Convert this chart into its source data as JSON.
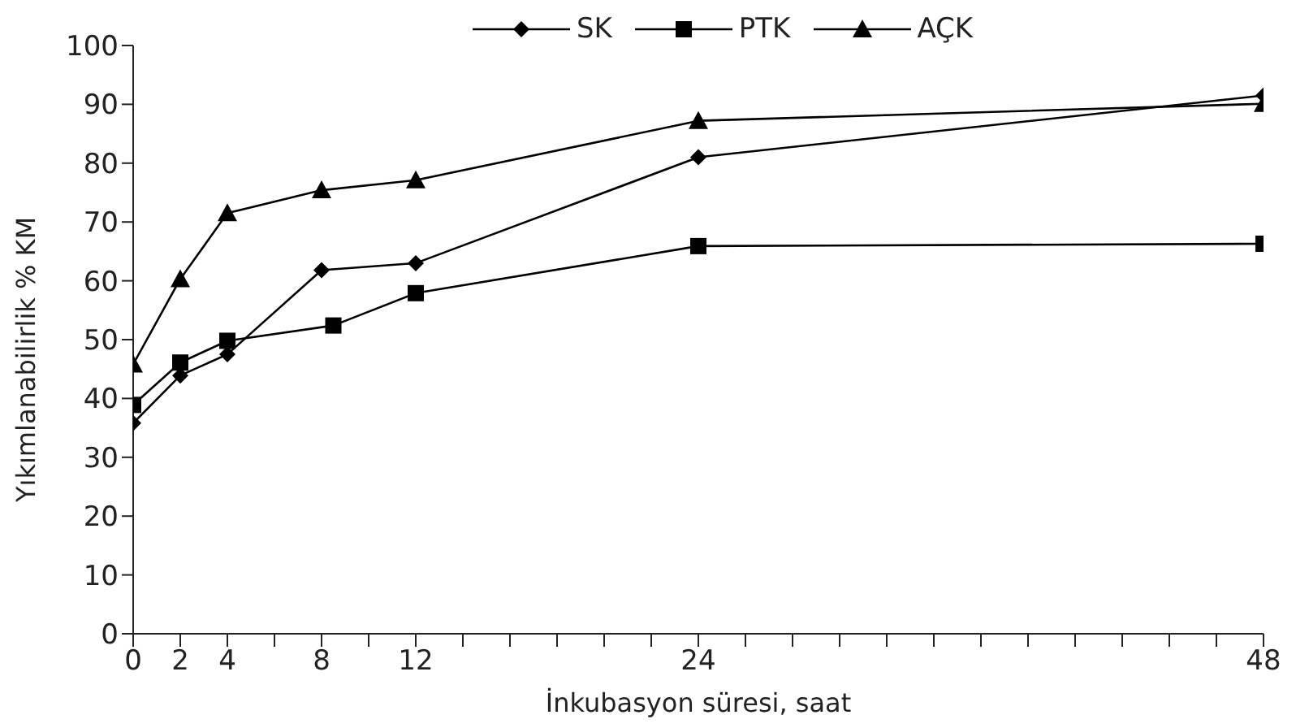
{
  "chart_data": {
    "type": "line",
    "xlabel": "İnkubasyon süresi, saat",
    "ylabel": "Yıkımlanabilirlik % KM",
    "xlim": [
      0,
      48
    ],
    "xticks": [
      0,
      2,
      4,
      {
        "value": 6,
        "label": null
      },
      8,
      {
        "value": 10,
        "label": null
      },
      12,
      {
        "value": 14,
        "label": null
      },
      {
        "value": 16,
        "label": null
      },
      {
        "value": 18,
        "label": null
      },
      {
        "value": 20,
        "label": null
      },
      {
        "value": 22,
        "label": null
      },
      24,
      {
        "value": 26,
        "label": null
      },
      {
        "value": 28,
        "label": null
      },
      {
        "value": 30,
        "label": null
      },
      {
        "value": 32,
        "label": null
      },
      {
        "value": 34,
        "label": null
      },
      {
        "value": 36,
        "label": null
      },
      {
        "value": 38,
        "label": null
      },
      {
        "value": 40,
        "label": null
      },
      {
        "value": 42,
        "label": null
      },
      {
        "value": 44,
        "label": null
      },
      {
        "value": 46,
        "label": null
      },
      48
    ],
    "ylim": [
      0,
      100
    ],
    "yticks": [
      0,
      10,
      20,
      30,
      40,
      50,
      60,
      70,
      80,
      90,
      100
    ],
    "grid": false,
    "legend": "top",
    "line_style": "solid",
    "series": [
      {
        "name": "SK",
        "color": "#000000",
        "marker": "diamond",
        "x": [
          0,
          2,
          4,
          8,
          12,
          24,
          48
        ],
        "values": [
          35.8,
          43.9,
          47.5,
          61.8,
          63,
          81,
          91.5
        ]
      },
      {
        "name": "PTK",
        "color": "#000000",
        "marker": "square",
        "x": [
          0,
          2,
          4,
          8.5,
          12,
          24,
          48
        ],
        "values": [
          38.9,
          46.1,
          49.8,
          52.4,
          57.9,
          65.9,
          66.3
        ]
      },
      {
        "name": "AÇK",
        "color": "#000000",
        "marker": "triangle",
        "x": [
          0,
          2,
          4,
          8,
          12,
          24,
          48
        ],
        "values": [
          45.8,
          60.3,
          71.5,
          75.4,
          77.1,
          87.2,
          90.1
        ]
      }
    ]
  }
}
